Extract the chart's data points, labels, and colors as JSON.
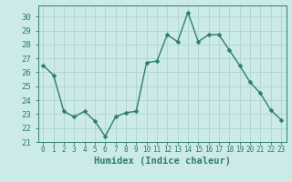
{
  "x": [
    0,
    1,
    2,
    3,
    4,
    5,
    6,
    7,
    8,
    9,
    10,
    11,
    12,
    13,
    14,
    15,
    16,
    17,
    18,
    19,
    20,
    21,
    22,
    23
  ],
  "y": [
    26.5,
    25.8,
    23.2,
    22.8,
    23.2,
    22.5,
    21.4,
    22.8,
    23.1,
    23.2,
    26.7,
    26.8,
    28.7,
    28.2,
    30.3,
    28.2,
    28.7,
    28.7,
    27.6,
    26.5,
    25.3,
    24.5,
    23.3,
    22.6
  ],
  "line_color": "#2e7d6e",
  "marker": "D",
  "marker_size": 2.5,
  "bg_color": "#cceae8",
  "grid_color": "#b0d4d0",
  "xlabel": "Humidex (Indice chaleur)",
  "xlabel_fontsize": 7.5,
  "xlabel_color": "#2e7d6e",
  "yticks": [
    21,
    22,
    23,
    24,
    25,
    26,
    27,
    28,
    29,
    30
  ],
  "xtick_labels": [
    "0",
    "1",
    "2",
    "3",
    "4",
    "5",
    "6",
    "7",
    "8",
    "9",
    "10",
    "11",
    "12",
    "13",
    "14",
    "15",
    "16",
    "17",
    "18",
    "19",
    "20",
    "21",
    "22",
    "23"
  ],
  "ylim": [
    21,
    30.8
  ],
  "xlim": [
    -0.5,
    23.5
  ],
  "tick_color": "#2e7d6e",
  "ytick_fontsize": 6.5,
  "xtick_fontsize": 5.5,
  "spine_color": "#2e7d6e",
  "line_width": 1.0
}
